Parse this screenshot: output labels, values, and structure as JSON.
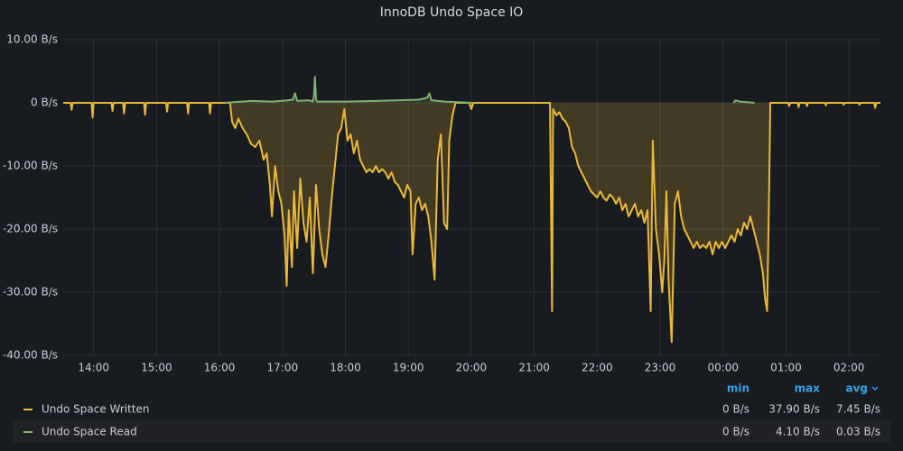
{
  "chart_data": {
    "type": "line",
    "title": "InnoDB Undo Space IO",
    "xlim": [
      "13:31",
      "02:30"
    ],
    "xticks": [
      "14:00",
      "15:00",
      "16:00",
      "17:00",
      "18:00",
      "19:00",
      "20:00",
      "21:00",
      "22:00",
      "23:00",
      "00:00",
      "01:00",
      "02:00"
    ],
    "ylim": [
      -40,
      10
    ],
    "yticks": [
      {
        "value": 10,
        "label": "10.00 B/s"
      },
      {
        "value": 0,
        "label": "0 B/s"
      },
      {
        "value": -10,
        "label": "-10.00 B/s"
      },
      {
        "value": -20,
        "label": "-20.00 B/s"
      },
      {
        "value": -30,
        "label": "-30.00 B/s"
      },
      {
        "value": -40,
        "label": "-40.00 B/s"
      }
    ],
    "grid": true,
    "legend": {
      "columns": [
        "min",
        "max",
        "avg"
      ]
    },
    "series": [
      {
        "name": "Undo Space Written",
        "color": "#EAB839",
        "legend_values": [
          "0 B/s",
          "37.90 B/s",
          "7.45 B/s"
        ],
        "x": [
          "13:31",
          "13:38",
          "13:39",
          "13:40",
          "13:58",
          "13:59",
          "14:00",
          "14:17",
          "14:18",
          "14:19",
          "14:28",
          "14:29",
          "14:30",
          "14:48",
          "14:49",
          "14:50",
          "15:09",
          "15:10",
          "15:11",
          "15:29",
          "15:30",
          "15:31",
          "15:50",
          "15:51",
          "15:52",
          "16:10",
          "16:12",
          "16:15",
          "16:18",
          "16:22",
          "16:26",
          "16:30",
          "16:34",
          "16:38",
          "16:42",
          "16:45",
          "16:48",
          "16:50",
          "16:53",
          "16:56",
          "16:59",
          "17:02",
          "17:04",
          "17:06",
          "17:09",
          "17:11",
          "17:14",
          "17:17",
          "17:20",
          "17:23",
          "17:26",
          "17:29",
          "17:32",
          "17:35",
          "17:38",
          "17:41",
          "17:44",
          "17:47",
          "17:50",
          "17:53",
          "17:56",
          "17:59",
          "18:02",
          "18:05",
          "18:08",
          "18:11",
          "18:14",
          "18:17",
          "18:20",
          "18:23",
          "18:26",
          "18:29",
          "18:32",
          "18:35",
          "18:38",
          "18:41",
          "18:44",
          "18:47",
          "18:50",
          "18:53",
          "18:56",
          "18:59",
          "19:02",
          "19:04",
          "19:07",
          "19:10",
          "19:13",
          "19:16",
          "19:19",
          "19:22",
          "19:25",
          "19:28",
          "19:31",
          "19:34",
          "19:37",
          "19:39",
          "19:42",
          "19:45",
          "19:58",
          "20:00",
          "20:02",
          "21:15",
          "21:17",
          "21:18",
          "21:21",
          "21:24",
          "21:27",
          "21:30",
          "21:33",
          "21:36",
          "21:39",
          "21:42",
          "21:45",
          "21:48",
          "21:51",
          "21:54",
          "21:57",
          "22:00",
          "22:03",
          "22:06",
          "22:09",
          "22:12",
          "22:15",
          "22:18",
          "22:21",
          "22:24",
          "22:27",
          "22:30",
          "22:33",
          "22:36",
          "22:39",
          "22:42",
          "22:45",
          "22:48",
          "22:51",
          "22:53",
          "22:56",
          "22:59",
          "23:02",
          "23:04",
          "23:06",
          "23:08",
          "23:11",
          "23:14",
          "23:17",
          "23:20",
          "23:23",
          "23:26",
          "23:29",
          "23:32",
          "23:35",
          "23:38",
          "23:41",
          "23:44",
          "23:47",
          "23:50",
          "23:53",
          "23:56",
          "23:59",
          "00:02",
          "00:05",
          "00:08",
          "00:11",
          "00:14",
          "00:17",
          "00:20",
          "00:23",
          "00:26",
          "00:29",
          "00:32",
          "00:35",
          "00:38",
          "00:40",
          "00:42",
          "00:44",
          "00:45",
          "01:02",
          "01:03",
          "01:04",
          "01:11",
          "01:12",
          "01:13",
          "01:19",
          "01:20",
          "01:21",
          "01:37",
          "01:38",
          "01:39",
          "01:54",
          "01:55",
          "01:56",
          "02:09",
          "02:10",
          "02:11",
          "02:24",
          "02:25",
          "02:26",
          "02:30"
        ],
        "values": [
          0,
          0,
          -1.1,
          0,
          0,
          -2.3,
          0,
          0,
          -1.3,
          0,
          0,
          -1.7,
          0,
          0,
          -1.9,
          0,
          0,
          -1.4,
          0,
          0,
          -1.7,
          0,
          0,
          -1.7,
          0,
          0,
          -3,
          -4,
          -2.5,
          -4,
          -5,
          -6.5,
          -7,
          -6,
          -9,
          -8,
          -13,
          -18,
          -10,
          -14,
          -16,
          -21,
          -29,
          -17,
          -26,
          -14,
          -23,
          -12,
          -19,
          -22,
          -15,
          -27,
          -13,
          -20,
          -24,
          -26,
          -21,
          -15,
          -10,
          -5,
          -4,
          -1,
          -6,
          -5,
          -8,
          -6,
          -9,
          -10,
          -11,
          -10.5,
          -11,
          -10,
          -11,
          -10.5,
          -11,
          -12,
          -11,
          -12.5,
          -13,
          -14,
          -15,
          -13,
          -14,
          -24,
          -16,
          -15,
          -17,
          -16,
          -18,
          -22,
          -28,
          -9,
          -5,
          -19,
          -20,
          -6,
          -2,
          0,
          0,
          -1,
          0,
          0,
          -33,
          -1,
          -2,
          -1.5,
          -2.5,
          -3,
          -4,
          -7,
          -8,
          -10,
          -11,
          -12,
          -13,
          -14,
          -14.5,
          -15,
          -14,
          -15,
          -15.5,
          -14.5,
          -15,
          -16,
          -15,
          -17,
          -16,
          -18,
          -17,
          -16,
          -18,
          -17,
          -19,
          -17,
          -33,
          -6,
          -20,
          -24,
          -30,
          -25,
          -14,
          -28,
          -37.9,
          -16,
          -14,
          -18,
          -20,
          -21,
          -22,
          -23,
          -22,
          -23,
          -22.5,
          -23,
          -22,
          -24,
          -22,
          -23,
          -22,
          -23,
          -22,
          -21,
          -22,
          -20,
          -21,
          -19,
          -20,
          -18,
          -20,
          -22,
          -24,
          -27,
          -31,
          -33,
          -13,
          0,
          0,
          -0.5,
          0,
          0,
          -0.7,
          0,
          0,
          -0.5,
          0,
          0,
          -0.4,
          0,
          0,
          -0.3,
          0,
          0,
          -0.3,
          0,
          0,
          -0.8,
          0,
          0
        ]
      },
      {
        "name": "Undo Space Read",
        "color": "#7EB26D",
        "legend_values": [
          "0 B/s",
          "4.10 B/s",
          "0.03 B/s"
        ],
        "x": [
          "16:05",
          "16:30",
          "16:50",
          "17:05",
          "17:10",
          "17:12",
          "17:14",
          "17:25",
          "17:29",
          "17:30",
          "17:31",
          "17:32",
          "17:33",
          "18:00",
          "18:30",
          "19:10",
          "19:18",
          "19:20",
          "19:22",
          "19:35",
          "20:01",
          "20:02",
          "00:10",
          "00:12",
          "00:14",
          "00:16",
          "00:30"
        ],
        "values": [
          0,
          0.3,
          0.2,
          0.4,
          0.5,
          1.5,
          0.3,
          0.4,
          0.2,
          1,
          4.1,
          0.5,
          0.2,
          0.2,
          0.3,
          0.5,
          0.8,
          1.5,
          0.4,
          0.2,
          0,
          null,
          0,
          0.4,
          0.3,
          0.2,
          0
        ]
      }
    ]
  }
}
